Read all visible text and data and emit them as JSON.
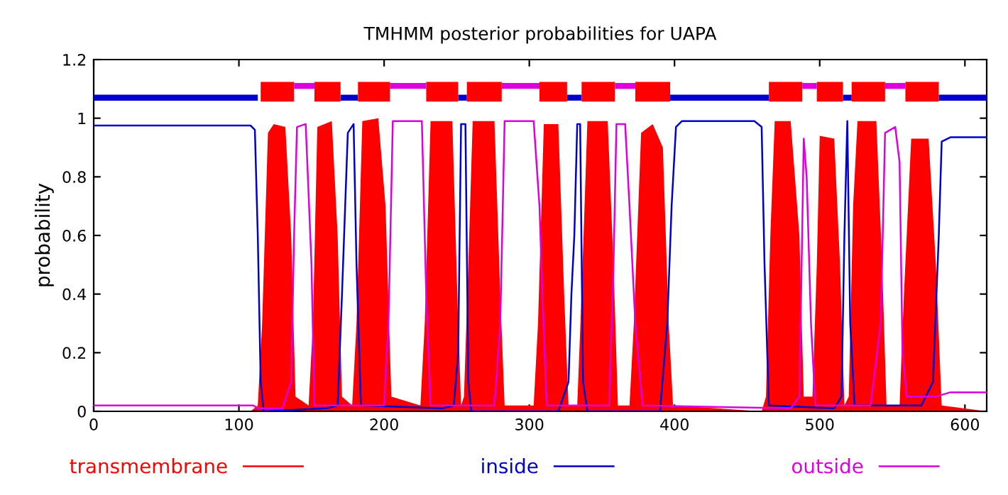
{
  "chart_data": {
    "type": "line",
    "title": "TMHMM posterior probabilities for UAPA",
    "ylabel": "probability",
    "xlim": [
      0,
      615
    ],
    "ylim": [
      0,
      1.2
    ],
    "xticks": [
      0,
      100,
      200,
      300,
      400,
      500,
      600
    ],
    "yticks": [
      0,
      {
        "value": 0.2,
        "label": "0.2"
      },
      {
        "value": 0.4,
        "label": "0.4"
      },
      {
        "value": 0.6,
        "label": "0.6"
      },
      {
        "value": 0.8,
        "label": "0.8"
      },
      1,
      {
        "value": 1.2,
        "label": "1.2"
      }
    ],
    "grid": false,
    "legend": "bottom",
    "marker": "none",
    "line_style": "solid",
    "series": [
      {
        "name": "transmembrane",
        "type": "area",
        "color": "#ff0000",
        "x": [
          0,
          108,
          113,
          116,
          120,
          124,
          132,
          136,
          139,
          148,
          151,
          154,
          164,
          168,
          171,
          178,
          181,
          185,
          196,
          201,
          205,
          225,
          228,
          232,
          247,
          251,
          253,
          255,
          258,
          261,
          276,
          280,
          283,
          303,
          306,
          310,
          320,
          324,
          327,
          333,
          336,
          340,
          354,
          358,
          361,
          369,
          372,
          377,
          385,
          392,
          396,
          399,
          460,
          463,
          466,
          469,
          480,
          486,
          489,
          495,
          498,
          500,
          510,
          514,
          517,
          520,
          523,
          526,
          539,
          543,
          546,
          555,
          558,
          563,
          575,
          580,
          584,
          615
        ],
        "values": [
          0,
          0,
          0.02,
          0.3,
          0.95,
          0.98,
          0.97,
          0.6,
          0.05,
          0.02,
          0.3,
          0.97,
          0.99,
          0.6,
          0.05,
          0.02,
          0.3,
          0.99,
          1.0,
          0.7,
          0.05,
          0.02,
          0.3,
          0.99,
          0.99,
          0.3,
          0.02,
          0.05,
          0.5,
          0.99,
          0.99,
          0.4,
          0.02,
          0.02,
          0.3,
          0.98,
          0.98,
          0.4,
          0.02,
          0.02,
          0.4,
          0.99,
          0.99,
          0.5,
          0.02,
          0.02,
          0.3,
          0.95,
          0.98,
          0.9,
          0.3,
          0.02,
          0.0,
          0.05,
          0.6,
          0.99,
          0.99,
          0.6,
          0.05,
          0.05,
          0.5,
          0.94,
          0.93,
          0.5,
          0.02,
          0.05,
          0.7,
          0.99,
          0.99,
          0.5,
          0.02,
          0.02,
          0.4,
          0.93,
          0.93,
          0.5,
          0.02,
          0.0
        ]
      },
      {
        "name": "inside",
        "color": "#0000cc",
        "x": [
          0,
          108,
          111,
          113,
          115,
          117,
          160,
          168,
          171,
          175,
          179,
          181,
          184,
          240,
          248,
          251,
          253,
          256,
          258,
          260,
          320,
          327,
          329,
          331,
          333,
          335,
          337,
          340,
          390,
          395,
          398,
          401,
          405,
          455,
          460,
          462,
          465,
          510,
          515,
          517,
          519,
          521,
          524,
          570,
          578,
          582,
          584,
          590,
          615
        ],
        "values": [
          0.975,
          0.975,
          0.96,
          0.6,
          0.1,
          0.0,
          0.01,
          0.02,
          0.4,
          0.95,
          0.98,
          0.5,
          0.02,
          0.01,
          0.02,
          0.2,
          0.98,
          0.98,
          0.1,
          0.0,
          0.0,
          0.1,
          0.4,
          0.6,
          0.98,
          0.98,
          0.1,
          0.0,
          0.0,
          0.3,
          0.7,
          0.97,
          0.99,
          0.99,
          0.97,
          0.5,
          0.02,
          0.01,
          0.05,
          0.6,
          0.99,
          0.3,
          0.02,
          0.02,
          0.1,
          0.6,
          0.92,
          0.935,
          0.935
        ]
      },
      {
        "name": "outside",
        "color": "#dd00dd",
        "x": [
          0,
          110,
          113,
          130,
          136,
          138,
          140,
          146,
          150,
          152,
          200,
          203,
          206,
          226,
          229,
          232,
          276,
          280,
          283,
          303,
          307,
          309,
          312,
          355,
          358,
          360,
          366,
          369,
          373,
          378,
          480,
          486,
          489,
          491,
          494,
          497,
          535,
          542,
          545,
          552,
          555,
          557,
          560,
          580,
          590,
          615
        ],
        "values": [
          0.02,
          0.02,
          0.01,
          0.01,
          0.1,
          0.6,
          0.97,
          0.98,
          0.5,
          0.02,
          0.02,
          0.3,
          0.99,
          0.99,
          0.4,
          0.02,
          0.02,
          0.3,
          0.99,
          0.99,
          0.7,
          0.4,
          0.02,
          0.02,
          0.5,
          0.98,
          0.98,
          0.7,
          0.3,
          0.02,
          0.01,
          0.05,
          0.93,
          0.8,
          0.3,
          0.02,
          0.02,
          0.3,
          0.95,
          0.97,
          0.85,
          0.2,
          0.05,
          0.05,
          0.065,
          0.065
        ]
      },
      {
        "color": "#0000cc",
        "x": [
          0,
          113
        ],
        "values": [
          1.07,
          1.07
        ]
      },
      {
        "color": "#0000cc",
        "x": [
          170,
          182
        ],
        "values": [
          1.07,
          1.07
        ]
      },
      {
        "color": "#0000cc",
        "x": [
          251,
          257
        ],
        "values": [
          1.07,
          1.07
        ]
      },
      {
        "color": "#0000cc",
        "x": [
          326,
          336
        ],
        "values": [
          1.07,
          1.07
        ]
      },
      {
        "color": "#0000cc",
        "x": [
          397,
          465
        ],
        "values": [
          1.07,
          1.07
        ]
      },
      {
        "color": "#0000cc",
        "x": [
          516,
          522
        ],
        "values": [
          1.07,
          1.07
        ]
      },
      {
        "color": "#0000cc",
        "x": [
          582,
          615
        ],
        "values": [
          1.07,
          1.07
        ]
      },
      {
        "color": "#ff0000",
        "x": [
          115,
          138
        ],
        "values": [
          1.09,
          1.09
        ]
      },
      {
        "color": "#ff0000",
        "x": [
          152,
          170
        ],
        "values": [
          1.09,
          1.09
        ]
      },
      {
        "color": "#ff0000",
        "x": [
          182,
          204
        ],
        "values": [
          1.09,
          1.09
        ]
      },
      {
        "color": "#ff0000",
        "x": [
          229,
          251
        ],
        "values": [
          1.09,
          1.09
        ]
      },
      {
        "color": "#ff0000",
        "x": [
          257,
          281
        ],
        "values": [
          1.09,
          1.09
        ]
      },
      {
        "color": "#ff0000",
        "x": [
          307,
          326
        ],
        "values": [
          1.09,
          1.09
        ]
      },
      {
        "color": "#ff0000",
        "x": [
          336,
          359
        ],
        "values": [
          1.09,
          1.09
        ]
      },
      {
        "color": "#ff0000",
        "x": [
          373,
          397
        ],
        "values": [
          1.09,
          1.09
        ]
      },
      {
        "color": "#ff0000",
        "x": [
          465,
          488
        ],
        "values": [
          1.09,
          1.09
        ]
      },
      {
        "color": "#ff0000",
        "x": [
          498,
          516
        ],
        "values": [
          1.09,
          1.09
        ]
      },
      {
        "color": "#ff0000",
        "x": [
          522,
          545
        ],
        "values": [
          1.09,
          1.09
        ]
      },
      {
        "color": "#ff0000",
        "x": [
          559,
          582
        ],
        "values": [
          1.09,
          1.09
        ]
      },
      {
        "color": "#dd00dd",
        "x": [
          138,
          152
        ],
        "values": [
          1.11,
          1.11
        ]
      },
      {
        "color": "#dd00dd",
        "x": [
          204,
          229
        ],
        "values": [
          1.11,
          1.11
        ]
      },
      {
        "color": "#dd00dd",
        "x": [
          281,
          307
        ],
        "values": [
          1.11,
          1.11
        ]
      },
      {
        "color": "#dd00dd",
        "x": [
          359,
          373
        ],
        "values": [
          1.11,
          1.11
        ]
      },
      {
        "color": "#dd00dd",
        "x": [
          488,
          498
        ],
        "values": [
          1.11,
          1.11
        ]
      },
      {
        "color": "#dd00dd",
        "x": [
          545,
          559
        ],
        "values": [
          1.11,
          1.11
        ]
      }
    ]
  }
}
